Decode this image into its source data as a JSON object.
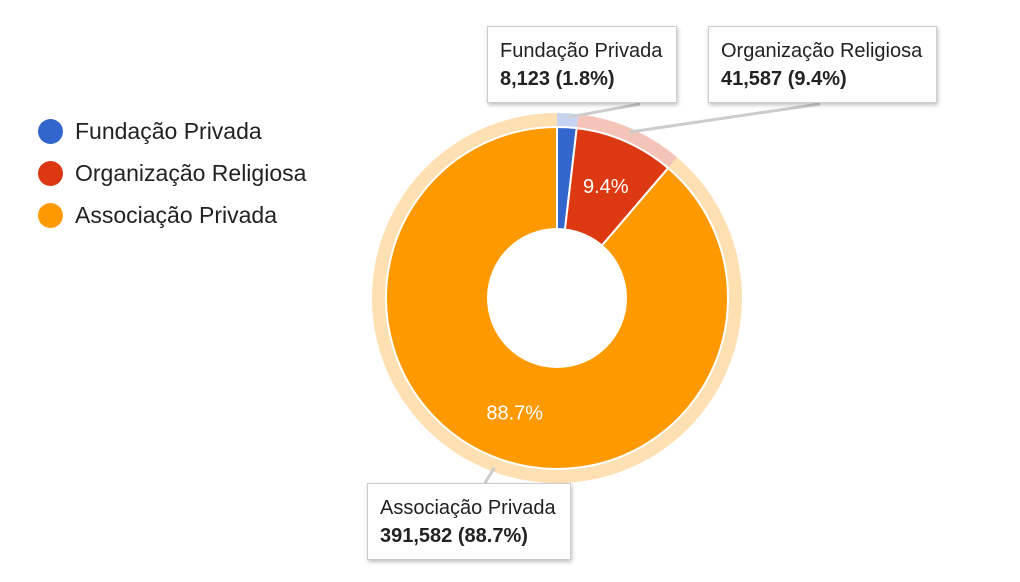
{
  "chart_data": {
    "type": "pie",
    "donut": true,
    "legend_position": "left",
    "slices": [
      {
        "label": "Fundação Privada",
        "value": 8123,
        "value_text": "8,123",
        "percent_text": "1.8%",
        "color": "#3366cc"
      },
      {
        "label": "Organização Religiosa",
        "value": 41587,
        "value_text": "41,587",
        "percent_text": "9.4%",
        "color": "#dc3912"
      },
      {
        "label": "Associação Privada",
        "value": 391582,
        "value_text": "391,582",
        "percent_text": "88.7%",
        "color": "#ff9900"
      }
    ]
  },
  "tooltips": [
    {
      "title": "Fundação Privada",
      "value": "8,123 (1.8%)"
    },
    {
      "title": "Organização Religiosa",
      "value": "41,587 (9.4%)"
    },
    {
      "title": "Associação Privada",
      "value": "391,582 (88.7%)"
    }
  ],
  "highlight_colors": [
    "#c6d4f2",
    "#f4c4b8",
    "#ffe0b3"
  ]
}
